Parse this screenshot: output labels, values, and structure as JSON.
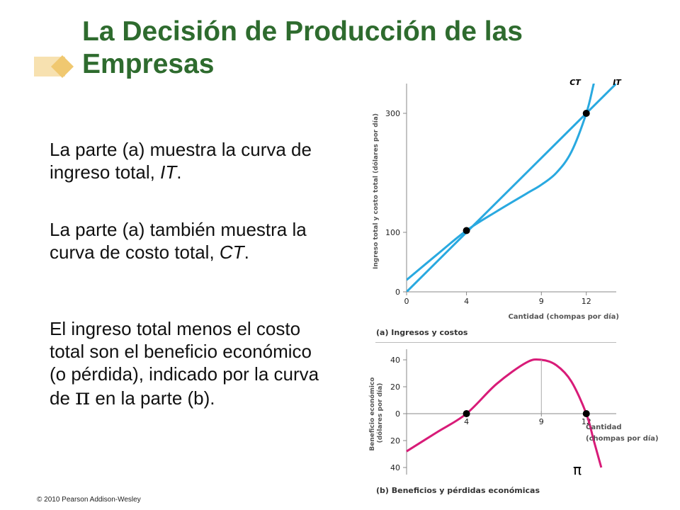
{
  "slide": {
    "title": "La Decisión de Producción de las Empresas",
    "paragraphs": {
      "p1_a": "La parte (a) muestra la curva de ingreso total, ",
      "p1_b": "IT",
      "p1_c": ".",
      "p2_a": "La parte (a) también muestra la curva de costo total, ",
      "p2_b": "CT",
      "p2_c": ".",
      "p3_a": "El ingreso total menos el costo total son el beneficio económico (o pérdida), indicado por la curva de ",
      "p3_pi": "π",
      "p3_c": " en la parte (b)."
    },
    "footer": "© 2010 Pearson Addison-Wesley"
  },
  "colors": {
    "title": "#2e6b2e",
    "it_curve": "#29a9e0",
    "ct_curve": "#29a9e0",
    "profit_curve": "#d81b78",
    "deco_diamond": "#f0c870",
    "deco_bar": "#f7e1b0"
  },
  "chart_data": [
    {
      "type": "line",
      "panel_label": "(a) Ingresos y costos",
      "xlabel": "Cantidad (chompas por día)",
      "ylabel": "Ingreso total y costo total (dólares por día)",
      "xlim": [
        0,
        14
      ],
      "ylim": [
        0,
        350
      ],
      "xticks": [
        "0",
        "4",
        "9",
        "12"
      ],
      "yticks": [
        "0",
        "100",
        "300"
      ],
      "grid": false,
      "series": [
        {
          "name": "IT",
          "x": [
            0,
            4,
            9,
            12,
            14
          ],
          "y": [
            0,
            100,
            225,
            300,
            350
          ]
        },
        {
          "name": "CT",
          "x": [
            0,
            2,
            4,
            6,
            8,
            9,
            10,
            11,
            12,
            12.5,
            13
          ],
          "y": [
            20,
            62,
            103,
            135,
            165,
            180,
            200,
            235,
            300,
            350,
            400
          ]
        }
      ],
      "points": [
        {
          "x": 4,
          "y": 103
        },
        {
          "x": 12,
          "y": 300
        }
      ]
    },
    {
      "type": "line",
      "panel_label": "(b) Beneficios y pérdidas económicas",
      "xlabel": "Cantidad (chompas por día)",
      "ylabel": "Beneficio económico (dólares por día)",
      "xlim": [
        0,
        14
      ],
      "ylim": [
        -40,
        40
      ],
      "xticks": [
        "4",
        "9",
        "12"
      ],
      "yticks": [
        "40",
        "20",
        "0",
        "20",
        "40"
      ],
      "grid": false,
      "series": [
        {
          "name": "π",
          "x": [
            0,
            2,
            4,
            6,
            8,
            9,
            10,
            11,
            12,
            12.5,
            13
          ],
          "y": [
            -28,
            -14,
            0,
            22,
            38,
            40,
            36,
            24,
            0,
            -20,
            -40
          ]
        }
      ],
      "points": [
        {
          "x": 4,
          "y": 0
        },
        {
          "x": 12,
          "y": 0
        }
      ]
    }
  ]
}
